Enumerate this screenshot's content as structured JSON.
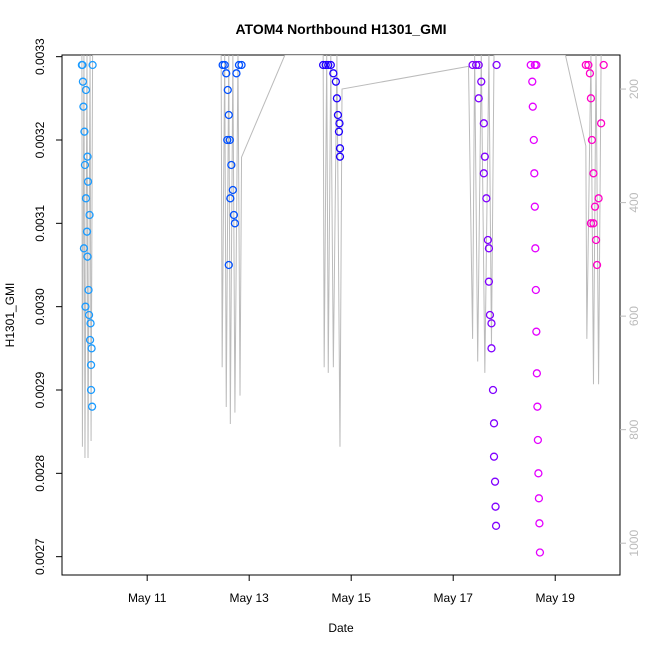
{
  "chart_data": {
    "type": "scatter",
    "title": "ATOM4 Northbound H1301_GMI",
    "x_label": "Date",
    "y_label": "H1301_GMI",
    "xlim": [
      9.33,
      20.27
    ],
    "xticks": [
      {
        "value": 11,
        "label": "May 11"
      },
      {
        "value": 13,
        "label": "May 13"
      },
      {
        "value": 15,
        "label": "May 15"
      },
      {
        "value": 17,
        "label": "May 17"
      },
      {
        "value": 19,
        "label": "May 19"
      }
    ],
    "ylim": [
      0.002678,
      0.003302
    ],
    "yticks": [
      0.0027,
      0.0028,
      0.0029,
      {
        "value": 0.003,
        "label": "0.0030"
      },
      0.0031,
      0.0032,
      0.0033
    ],
    "y2lim": [
      1056,
      140
    ],
    "y2ticks": [
      200,
      400,
      600,
      800,
      1000
    ],
    "series": [
      {
        "color": "#1a9bff",
        "x": [
          9.72,
          9.74,
          9.75,
          9.77,
          9.78,
          9.8,
          9.82,
          9.83,
          9.85,
          9.86,
          9.88,
          9.9,
          9.9,
          9.92,
          9.93,
          9.8,
          9.83,
          9.87,
          9.76,
          9.79,
          9.73,
          9.91,
          9.89,
          9.84
        ],
        "values": [
          0.00329,
          0.00327,
          0.00324,
          0.00321,
          0.00317,
          0.00313,
          0.00309,
          0.00306,
          0.00302,
          0.00299,
          0.00296,
          0.00293,
          0.0029,
          0.00288,
          0.00329,
          0.00326,
          0.00318,
          0.00311,
          0.00307,
          0.003,
          0.00329,
          0.00295,
          0.00298,
          0.00315
        ]
      },
      {
        "color": "#0050ff",
        "x": [
          12.48,
          12.52,
          12.55,
          12.58,
          12.6,
          12.62,
          12.65,
          12.68,
          12.7,
          12.72,
          12.75,
          12.8,
          12.85,
          12.6,
          12.63,
          12.57
        ],
        "values": [
          0.00329,
          0.00329,
          0.00328,
          0.00326,
          0.00323,
          0.0032,
          0.00317,
          0.00314,
          0.00311,
          0.0031,
          0.00328,
          0.00329,
          0.00329,
          0.00305,
          0.00313,
          0.0032
        ]
      },
      {
        "color": "#2000ff",
        "x": [
          14.45,
          14.5,
          14.55,
          14.6,
          14.65,
          14.7,
          14.72,
          14.74,
          14.76,
          14.78,
          14.78,
          14.77
        ],
        "values": [
          0.00329,
          0.00329,
          0.00329,
          0.00329,
          0.00328,
          0.00327,
          0.00325,
          0.00323,
          0.00321,
          0.00319,
          0.00318,
          0.00322
        ]
      },
      {
        "color": "#8000ff",
        "x": [
          17.38,
          17.45,
          17.5,
          17.55,
          17.6,
          17.62,
          17.65,
          17.68,
          17.7,
          17.72,
          17.75,
          17.78,
          17.8,
          17.8,
          17.82,
          17.83,
          17.84,
          17.85,
          17.6,
          17.7,
          17.75,
          17.5
        ],
        "values": [
          0.00329,
          0.00329,
          0.00329,
          0.00327,
          0.00322,
          0.00318,
          0.00313,
          0.00308,
          0.00303,
          0.00299,
          0.00295,
          0.0029,
          0.00286,
          0.00282,
          0.00279,
          0.00276,
          0.002737,
          0.00329,
          0.00316,
          0.00307,
          0.00298,
          0.00325
        ]
      },
      {
        "color": "#e400ff",
        "x": [
          18.52,
          18.55,
          18.56,
          18.58,
          18.59,
          18.6,
          18.61,
          18.62,
          18.63,
          18.64,
          18.65,
          18.66,
          18.67,
          18.68,
          18.69,
          18.7,
          18.6,
          18.63
        ],
        "values": [
          0.00329,
          0.00327,
          0.00324,
          0.0032,
          0.00316,
          0.00312,
          0.00307,
          0.00302,
          0.00297,
          0.00292,
          0.00288,
          0.00284,
          0.0028,
          0.00277,
          0.00274,
          0.002705,
          0.00329,
          0.00329
        ]
      },
      {
        "color": "#ff00c8",
        "x": [
          19.6,
          19.65,
          19.68,
          19.7,
          19.72,
          19.75,
          19.78,
          19.8,
          19.82,
          19.85,
          19.9,
          19.95,
          19.7,
          19.75
        ],
        "values": [
          0.00329,
          0.00329,
          0.00328,
          0.00325,
          0.0032,
          0.00316,
          0.00312,
          0.00308,
          0.00305,
          0.00313,
          0.00322,
          0.00329,
          0.0031,
          0.0031
        ]
      }
    ],
    "line": {
      "color": "#bbbbbb",
      "axis": "y2",
      "x": [
        9.72,
        9.73,
        9.76,
        9.78,
        9.82,
        9.84,
        9.88,
        9.9,
        9.93,
        12.45,
        12.47,
        12.52,
        12.55,
        12.6,
        12.63,
        12.68,
        12.72,
        12.78,
        12.82,
        12.85,
        13.7,
        14.45,
        14.47,
        14.52,
        14.55,
        14.6,
        14.65,
        14.72,
        14.78,
        14.82,
        17.3,
        17.38,
        17.42,
        17.48,
        17.55,
        17.62,
        17.7,
        17.75,
        17.8,
        19.2,
        19.6,
        19.62,
        19.7,
        19.75,
        19.8,
        19.85,
        19.9
      ],
      "values": [
        140,
        830,
        140,
        850,
        140,
        850,
        140,
        820,
        140,
        140,
        690,
        140,
        760,
        140,
        790,
        140,
        770,
        140,
        740,
        320,
        140,
        140,
        690,
        140,
        700,
        140,
        690,
        140,
        830,
        200,
        160,
        640,
        140,
        680,
        140,
        700,
        140,
        650,
        140,
        140,
        300,
        640,
        140,
        720,
        140,
        720,
        140
      ]
    }
  }
}
